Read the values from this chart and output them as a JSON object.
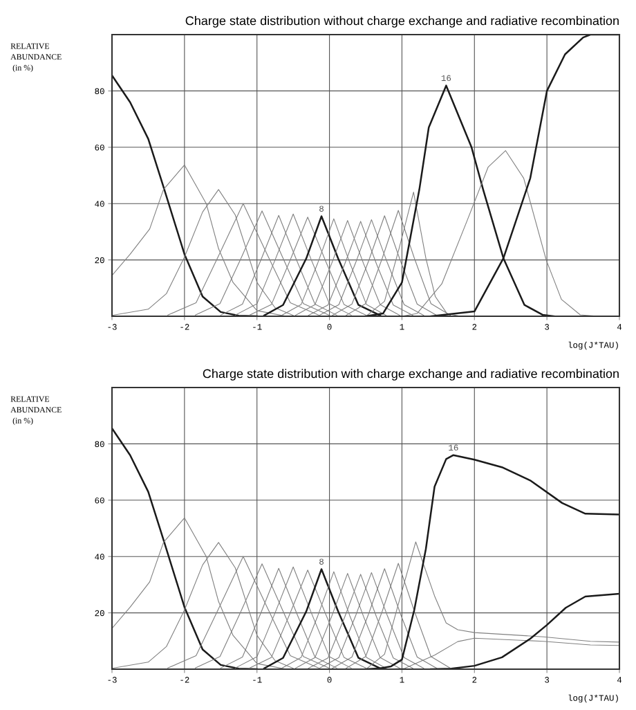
{
  "chart_data": [
    {
      "type": "line",
      "title": "Charge state distribution without charge exchange and radiative recombination",
      "xlabel": "log(J*TAU)",
      "ylabel": "RELATIVE\nABUNDANCE\n (in %)",
      "xlim": [
        -3,
        4
      ],
      "ylim": [
        0,
        100
      ],
      "xticks": [
        -3,
        -2,
        -1,
        0,
        1,
        2,
        3,
        4
      ],
      "yticks": [
        20,
        40,
        60,
        80
      ],
      "grid": true,
      "series": [
        {
          "color": "#1a1a1a",
          "x": [
            -3,
            -2.75,
            -2.5,
            -2.29,
            -2,
            -1.75,
            -1.5,
            -1.25,
            -1.0
          ],
          "values": [
            85.5,
            76,
            63,
            46,
            22,
            7,
            1.5,
            0.2,
            0
          ]
        },
        {
          "color": "#808080",
          "x": [
            -3,
            -2.75,
            -2.48,
            -2.29,
            -2,
            -1.7,
            -1.53,
            -1.33,
            -1,
            -0.6
          ],
          "values": [
            14.5,
            22,
            31,
            45,
            53.7,
            40,
            24,
            12,
            2,
            0
          ]
        },
        {
          "color": "#808080",
          "x": [
            -3,
            -2.5,
            -2.25,
            -2,
            -1.75,
            -1.53,
            -1.3,
            -1,
            -0.75,
            -0.5
          ],
          "values": [
            0.3,
            2.5,
            8,
            21,
            37,
            45,
            36,
            12,
            3,
            0.3
          ]
        },
        {
          "color": "#808080",
          "x": [
            -2.23,
            -1.84,
            -1.52,
            -1.19,
            -0.86,
            -0.54,
            -0.15
          ],
          "values": [
            0.4,
            4.8,
            22,
            40,
            22,
            4.8,
            0.4
          ]
        },
        {
          "color": "#808080",
          "x": [
            -1.85,
            -1.51,
            -1.22,
            -0.93,
            -0.64,
            -0.36,
            -0.01
          ],
          "values": [
            0.4,
            4.5,
            20.6,
            37.4,
            20.6,
            4.5,
            0.4
          ]
        },
        {
          "color": "#808080",
          "x": [
            -1.5,
            -1.2,
            -0.95,
            -0.7,
            -0.45,
            -0.2,
            0.1
          ],
          "values": [
            0.4,
            4.3,
            19.7,
            35.8,
            19.7,
            4.3,
            0.4
          ]
        },
        {
          "color": "#808080",
          "x": [
            -1.3,
            -1.0,
            -0.75,
            -0.5,
            -0.25,
            0,
            0.3
          ],
          "values": [
            0.4,
            4.4,
            20,
            36.3,
            20,
            4.4,
            0.4
          ]
        },
        {
          "color": "#808080",
          "x": [
            -1.1,
            -0.8,
            -0.55,
            -0.3,
            -0.05,
            0.2,
            0.5
          ],
          "values": [
            0.4,
            4.2,
            19.4,
            35.2,
            19.4,
            4.2,
            0.4
          ]
        },
        {
          "name": "8",
          "color": "#1a1a1a",
          "x": [
            -0.9,
            -0.64,
            -0.32,
            -0.11,
            0.12,
            0.4,
            0.7
          ],
          "values": [
            0.3,
            4,
            20.5,
            35.5,
            20.5,
            4,
            0.3
          ]
        },
        {
          "color": "#808080",
          "x": [
            -0.66,
            -0.39,
            -0.16,
            0.06,
            0.28,
            0.51,
            0.78
          ],
          "values": [
            0.3,
            4.2,
            19,
            34.6,
            19,
            4.2,
            0.3
          ]
        },
        {
          "color": "#808080",
          "x": [
            -0.47,
            -0.2,
            0.03,
            0.25,
            0.47,
            0.7,
            0.97
          ],
          "values": [
            0.3,
            4.1,
            18.7,
            34,
            18.7,
            4.1,
            0.3
          ]
        },
        {
          "color": "#808080",
          "x": [
            -0.29,
            -0.02,
            0.21,
            0.43,
            0.65,
            0.88,
            1.15
          ],
          "values": [
            0.3,
            4,
            18.5,
            33.7,
            18.5,
            4,
            0.3
          ]
        },
        {
          "color": "#808080",
          "x": [
            -0.14,
            0.13,
            0.36,
            0.58,
            0.8,
            1.03,
            1.3
          ],
          "values": [
            0.3,
            4.1,
            18.9,
            34.3,
            18.9,
            4.1,
            0.3
          ]
        },
        {
          "color": "#808080",
          "x": [
            0.04,
            0.31,
            0.54,
            0.76,
            0.98,
            1.21,
            1.48
          ],
          "values": [
            0.3,
            4.3,
            19.6,
            35.7,
            19.6,
            4.3,
            0.3
          ]
        },
        {
          "color": "#808080",
          "x": [
            0.23,
            0.5,
            0.73,
            0.95,
            1.17,
            1.4,
            1.67
          ],
          "values": [
            0.3,
            4.5,
            20.7,
            37.6,
            20.7,
            4.5,
            0.3
          ]
        },
        {
          "color": "#808080",
          "x": [
            0.52,
            0.76,
            0.96,
            1.16,
            1.33,
            1.46,
            1.62,
            1.8
          ],
          "values": [
            0.3,
            5.3,
            24,
            44.1,
            20.6,
            7,
            1,
            0
          ]
        },
        {
          "name": "16",
          "color": "#1a1a1a",
          "x": [
            0.5,
            0.74,
            1.0,
            1.24,
            1.37,
            1.61,
            1.96,
            2.12,
            2.4,
            2.69,
            2.94,
            3.1
          ],
          "values": [
            0,
            1,
            12,
            45,
            67,
            81.9,
            60,
            45,
            20.6,
            4,
            0.5,
            0
          ]
        },
        {
          "color": "#808080",
          "x": [
            1.0,
            1.21,
            1.55,
            1.9,
            2.19,
            2.43,
            2.68,
            2.99,
            3.2,
            3.46,
            3.7
          ],
          "values": [
            0,
            1,
            11.5,
            34,
            53,
            58.8,
            49,
            20,
            6,
            0.5,
            0
          ]
        },
        {
          "color": "#1a1a1a",
          "x": [
            1.4,
            2.0,
            2.4,
            2.77,
            3.0,
            3.25,
            3.5,
            3.6,
            4.0
          ],
          "values": [
            0,
            1.7,
            20.6,
            49,
            80,
            93,
            99,
            100,
            100
          ]
        }
      ]
    },
    {
      "type": "line",
      "title": "Charge state distribution with charge exchange and radiative recombination",
      "xlabel": "log(J*TAU)",
      "ylabel": "RELATIVE\nABUNDANCE\n (in %)",
      "xlim": [
        -3,
        4
      ],
      "ylim": [
        0,
        100
      ],
      "xticks": [
        -3,
        -2,
        -1,
        0,
        1,
        2,
        3,
        4
      ],
      "yticks": [
        20,
        40,
        60,
        80
      ],
      "grid": true,
      "series": [
        {
          "color": "#1a1a1a",
          "x": [
            -3,
            -2.75,
            -2.5,
            -2.29,
            -2,
            -1.75,
            -1.5,
            -1.25,
            -1.0
          ],
          "values": [
            85.5,
            76,
            63,
            46,
            22,
            7,
            1.5,
            0.2,
            0
          ]
        },
        {
          "color": "#808080",
          "x": [
            -3,
            -2.75,
            -2.48,
            -2.29,
            -2,
            -1.7,
            -1.53,
            -1.33,
            -1,
            -0.6
          ],
          "values": [
            14.5,
            22,
            31,
            45,
            53.7,
            40,
            24,
            12,
            2,
            0
          ]
        },
        {
          "color": "#808080",
          "x": [
            -3,
            -2.5,
            -2.25,
            -2,
            -1.75,
            -1.53,
            -1.3,
            -1,
            -0.75,
            -0.5
          ],
          "values": [
            0.3,
            2.5,
            8,
            21,
            37,
            45,
            36,
            12,
            3,
            0.3
          ]
        },
        {
          "color": "#808080",
          "x": [
            -2.23,
            -1.84,
            -1.52,
            -1.19,
            -0.86,
            -0.54,
            -0.15
          ],
          "values": [
            0.4,
            4.8,
            22,
            40,
            22,
            4.8,
            0.4
          ]
        },
        {
          "color": "#808080",
          "x": [
            -1.85,
            -1.51,
            -1.22,
            -0.93,
            -0.64,
            -0.36,
            -0.01
          ],
          "values": [
            0.4,
            4.5,
            20.6,
            37.4,
            20.6,
            4.5,
            0.4
          ]
        },
        {
          "color": "#808080",
          "x": [
            -1.5,
            -1.2,
            -0.95,
            -0.7,
            -0.45,
            -0.2,
            0.1
          ],
          "values": [
            0.4,
            4.3,
            19.7,
            35.8,
            19.7,
            4.3,
            0.4
          ]
        },
        {
          "color": "#808080",
          "x": [
            -1.3,
            -1.0,
            -0.75,
            -0.5,
            -0.25,
            0,
            0.3
          ],
          "values": [
            0.4,
            4.4,
            20,
            36.3,
            20,
            4.4,
            0.4
          ]
        },
        {
          "color": "#808080",
          "x": [
            -1.1,
            -0.8,
            -0.55,
            -0.3,
            -0.05,
            0.2,
            0.5
          ],
          "values": [
            0.4,
            4.2,
            19.4,
            35.2,
            19.4,
            4.2,
            0.4
          ]
        },
        {
          "name": "8",
          "color": "#1a1a1a",
          "x": [
            -0.9,
            -0.64,
            -0.32,
            -0.11,
            0.12,
            0.4,
            0.7
          ],
          "values": [
            0.3,
            4,
            20.5,
            35.5,
            20.5,
            4,
            0.3
          ]
        },
        {
          "color": "#808080",
          "x": [
            -0.66,
            -0.39,
            -0.16,
            0.06,
            0.28,
            0.51,
            0.78
          ],
          "values": [
            0.3,
            4.2,
            19,
            34.6,
            19,
            4.2,
            0.3
          ]
        },
        {
          "color": "#808080",
          "x": [
            -0.47,
            -0.2,
            0.03,
            0.25,
            0.47,
            0.7,
            0.97
          ],
          "values": [
            0.3,
            4.1,
            18.7,
            34,
            18.7,
            4.1,
            0.3
          ]
        },
        {
          "color": "#808080",
          "x": [
            -0.29,
            -0.02,
            0.21,
            0.43,
            0.65,
            0.88,
            1.15
          ],
          "values": [
            0.3,
            4,
            18.5,
            33.7,
            18.5,
            4,
            0.3
          ]
        },
        {
          "color": "#808080",
          "x": [
            -0.14,
            0.13,
            0.36,
            0.58,
            0.8,
            1.03,
            1.3
          ],
          "values": [
            0.3,
            4.1,
            18.9,
            34.3,
            18.9,
            4.1,
            0.3
          ]
        },
        {
          "color": "#808080",
          "x": [
            0.04,
            0.31,
            0.54,
            0.76,
            0.98,
            1.21,
            1.48
          ],
          "values": [
            0.3,
            4.3,
            19.6,
            35.7,
            19.6,
            4.3,
            0.3
          ]
        },
        {
          "color": "#808080",
          "x": [
            0.23,
            0.5,
            0.73,
            0.95,
            1.17,
            1.4,
            1.67
          ],
          "values": [
            0.3,
            4.5,
            20.7,
            37.6,
            20.7,
            4.5,
            0.3
          ]
        },
        {
          "color": "#808080",
          "x": [
            0.52,
            0.76,
            0.96,
            1.19,
            1.45,
            1.61,
            1.77,
            2.0,
            2.95,
            3.6,
            4.0
          ],
          "values": [
            0.3,
            5.3,
            24,
            45.2,
            26,
            16.4,
            14,
            13,
            11.5,
            9.9,
            9.6
          ]
        },
        {
          "name": "16",
          "color": "#1a1a1a",
          "x": [
            0.5,
            0.7,
            0.85,
            1.0,
            1.17,
            1.33,
            1.45,
            1.61,
            1.71,
            2.0,
            2.38,
            2.77,
            3.21,
            3.53,
            4.0
          ],
          "values": [
            0,
            0.3,
            1,
            3.4,
            21,
            42.7,
            64.8,
            74.6,
            76,
            74.4,
            71.7,
            67,
            59,
            55.2,
            54.9
          ]
        },
        {
          "color": "#808080",
          "x": [
            0.8,
            1.04,
            1.45,
            1.77,
            2.0,
            2.95,
            3.6,
            4.0
          ],
          "values": [
            0,
            0.3,
            5,
            9.8,
            11,
            9.9,
            8.6,
            8.4
          ]
        },
        {
          "color": "#1a1a1a",
          "x": [
            1.4,
            1.68,
            2.0,
            2.38,
            2.77,
            3.0,
            3.26,
            3.53,
            4.0
          ],
          "values": [
            0,
            0.2,
            1.2,
            4.2,
            10.8,
            15.7,
            21.8,
            25.8,
            26.8
          ]
        }
      ]
    }
  ]
}
